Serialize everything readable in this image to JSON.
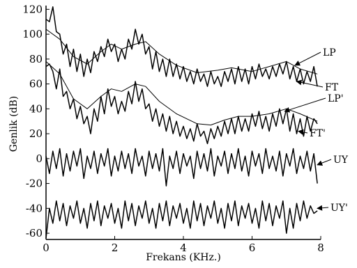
{
  "chart_data": {
    "type": "line",
    "title": "",
    "xlabel": "Frekans (KHz.)",
    "ylabel": "Genlik (dB)",
    "xlim": [
      0,
      8
    ],
    "ylim": [
      -65,
      123
    ],
    "x_ticks": [
      "0",
      "2",
      "4",
      "6",
      "8"
    ],
    "y_ticks": [
      "120",
      "100",
      "80",
      "60",
      "40",
      "20",
      "0",
      "-20",
      "-40",
      "-60"
    ],
    "grid": false,
    "legend": "none",
    "series": [
      {
        "name": "FT",
        "style": "jagged",
        "x": [
          0.0,
          0.1,
          0.2,
          0.3,
          0.4,
          0.5,
          0.6,
          0.7,
          0.8,
          0.9,
          1.0,
          1.1,
          1.2,
          1.3,
          1.4,
          1.5,
          1.6,
          1.7,
          1.8,
          1.9,
          2.0,
          2.1,
          2.2,
          2.3,
          2.4,
          2.5,
          2.6,
          2.7,
          2.8,
          2.9,
          3.0,
          3.1,
          3.2,
          3.3,
          3.4,
          3.5,
          3.6,
          3.7,
          3.8,
          3.9,
          4.0,
          4.1,
          4.2,
          4.3,
          4.4,
          4.5,
          4.6,
          4.7,
          4.8,
          4.9,
          5.0,
          5.1,
          5.2,
          5.3,
          5.4,
          5.5,
          5.6,
          5.7,
          5.8,
          5.9,
          6.0,
          6.1,
          6.2,
          6.3,
          6.4,
          6.5,
          6.6,
          6.7,
          6.8,
          6.9,
          7.0,
          7.1,
          7.2,
          7.3,
          7.4,
          7.5,
          7.6,
          7.7,
          7.8,
          7.9
        ],
        "y": [
          112,
          110,
          122,
          102,
          100,
          84,
          92,
          74,
          88,
          70,
          84,
          66,
          80,
          69,
          86,
          78,
          90,
          82,
          96,
          86,
          92,
          78,
          88,
          80,
          96,
          88,
          104,
          92,
          100,
          84,
          90,
          72,
          86,
          70,
          80,
          66,
          80,
          66,
          76,
          64,
          74,
          62,
          70,
          60,
          72,
          62,
          68,
          58,
          70,
          60,
          66,
          58,
          70,
          62,
          72,
          60,
          74,
          62,
          72,
          60,
          74,
          64,
          76,
          66,
          72,
          64,
          74,
          66,
          76,
          68,
          78,
          64,
          74,
          62,
          72,
          60,
          70,
          62,
          74,
          58
        ]
      },
      {
        "name": "LP",
        "style": "smooth",
        "x": [
          0.0,
          0.4,
          0.8,
          1.2,
          1.6,
          1.9,
          2.2,
          2.6,
          2.9,
          3.3,
          3.8,
          4.4,
          5.0,
          5.4,
          6.0,
          6.5,
          7.0,
          7.4,
          7.9
        ],
        "y": [
          104,
          96,
          82,
          76,
          86,
          92,
          88,
          92,
          94,
          84,
          75,
          69,
          71,
          73,
          70,
          74,
          78,
          72,
          68
        ]
      },
      {
        "name": "FT'",
        "style": "jagged",
        "x": [
          0.0,
          0.1,
          0.2,
          0.3,
          0.4,
          0.5,
          0.6,
          0.7,
          0.8,
          0.9,
          1.0,
          1.1,
          1.2,
          1.3,
          1.4,
          1.5,
          1.6,
          1.7,
          1.8,
          1.9,
          2.0,
          2.1,
          2.2,
          2.3,
          2.4,
          2.5,
          2.6,
          2.7,
          2.8,
          2.9,
          3.0,
          3.1,
          3.2,
          3.3,
          3.4,
          3.5,
          3.6,
          3.7,
          3.8,
          3.9,
          4.0,
          4.1,
          4.2,
          4.3,
          4.4,
          4.5,
          4.6,
          4.7,
          4.8,
          4.9,
          5.0,
          5.1,
          5.2,
          5.3,
          5.4,
          5.5,
          5.6,
          5.7,
          5.8,
          5.9,
          6.0,
          6.1,
          6.2,
          6.3,
          6.4,
          6.5,
          6.6,
          6.7,
          6.8,
          6.9,
          7.0,
          7.1,
          7.2,
          7.3,
          7.4,
          7.5,
          7.6,
          7.7,
          7.8,
          7.9
        ],
        "y": [
          74,
          76,
          70,
          56,
          72,
          50,
          54,
          40,
          48,
          32,
          42,
          28,
          34,
          20,
          40,
          30,
          50,
          36,
          56,
          42,
          50,
          36,
          46,
          38,
          54,
          44,
          62,
          46,
          56,
          40,
          44,
          30,
          40,
          26,
          36,
          22,
          34,
          20,
          30,
          18,
          26,
          16,
          24,
          14,
          28,
          18,
          22,
          12,
          24,
          16,
          26,
          18,
          30,
          20,
          32,
          20,
          34,
          22,
          32,
          22,
          36,
          26,
          38,
          24,
          34,
          22,
          36,
          26,
          40,
          28,
          40,
          22,
          36,
          20,
          32,
          18,
          34,
          22,
          32,
          28
        ]
      },
      {
        "name": "LP'",
        "style": "smooth",
        "x": [
          0.0,
          0.4,
          0.8,
          1.2,
          1.6,
          1.9,
          2.2,
          2.6,
          2.9,
          3.3,
          3.8,
          4.4,
          4.8,
          5.2,
          5.6,
          6.0,
          6.5,
          7.0,
          7.4,
          7.9
        ],
        "y": [
          78,
          68,
          48,
          40,
          50,
          56,
          54,
          60,
          58,
          46,
          36,
          28,
          27,
          31,
          34,
          34,
          36,
          40,
          36,
          30
        ]
      },
      {
        "name": "UY",
        "style": "jagged",
        "x": [
          0.0,
          0.1,
          0.2,
          0.3,
          0.4,
          0.5,
          0.6,
          0.7,
          0.8,
          0.9,
          1.0,
          1.1,
          1.2,
          1.3,
          1.4,
          1.5,
          1.6,
          1.7,
          1.8,
          1.9,
          2.0,
          2.1,
          2.2,
          2.3,
          2.4,
          2.5,
          2.6,
          2.7,
          2.8,
          2.9,
          3.0,
          3.1,
          3.2,
          3.3,
          3.4,
          3.5,
          3.6,
          3.7,
          3.8,
          3.9,
          4.0,
          4.1,
          4.2,
          4.3,
          4.4,
          4.5,
          4.6,
          4.7,
          4.8,
          4.9,
          5.0,
          5.1,
          5.2,
          5.3,
          5.4,
          5.5,
          5.6,
          5.7,
          5.8,
          5.9,
          6.0,
          6.1,
          6.2,
          6.3,
          6.4,
          6.5,
          6.6,
          6.7,
          6.8,
          6.9,
          7.0,
          7.1,
          7.2,
          7.3,
          7.4,
          7.5,
          7.6,
          7.7,
          7.8,
          7.9
        ],
        "y": [
          2,
          -12,
          6,
          -8,
          8,
          -14,
          4,
          -10,
          6,
          -6,
          8,
          -16,
          2,
          -8,
          6,
          -12,
          4,
          -6,
          8,
          -14,
          2,
          -10,
          6,
          -8,
          4,
          -12,
          8,
          -6,
          2,
          -14,
          6,
          -8,
          4,
          -10,
          8,
          -22,
          2,
          -8,
          6,
          -12,
          4,
          -6,
          2,
          -16,
          6,
          -8,
          4,
          -10,
          8,
          -14,
          2,
          -6,
          6,
          -12,
          4,
          -8,
          8,
          -10,
          2,
          -14,
          6,
          -6,
          4,
          -12,
          8,
          -8,
          2,
          -10,
          6,
          -14,
          4,
          -6,
          8,
          -12,
          2,
          -8,
          6,
          -10,
          4,
          -20
        ]
      },
      {
        "name": "UY'",
        "style": "jagged",
        "x": [
          0.0,
          0.1,
          0.2,
          0.3,
          0.4,
          0.5,
          0.6,
          0.7,
          0.8,
          0.9,
          1.0,
          1.1,
          1.2,
          1.3,
          1.4,
          1.5,
          1.6,
          1.7,
          1.8,
          1.9,
          2.0,
          2.1,
          2.2,
          2.3,
          2.4,
          2.5,
          2.6,
          2.7,
          2.8,
          2.9,
          3.0,
          3.1,
          3.2,
          3.3,
          3.4,
          3.5,
          3.6,
          3.7,
          3.8,
          3.9,
          4.0,
          4.1,
          4.2,
          4.3,
          4.4,
          4.5,
          4.6,
          4.7,
          4.8,
          4.9,
          5.0,
          5.1,
          5.2,
          5.3,
          5.4,
          5.5,
          5.6,
          5.7,
          5.8,
          5.9,
          6.0,
          6.1,
          6.2,
          6.3,
          6.4,
          6.5,
          6.6,
          6.7,
          6.8,
          6.9,
          7.0,
          7.1,
          7.2,
          7.3,
          7.4,
          7.5,
          7.6,
          7.7,
          7.8,
          7.9
        ],
        "y": [
          -64,
          -40,
          -52,
          -34,
          -50,
          -36,
          -54,
          -38,
          -48,
          -34,
          -52,
          -40,
          -56,
          -36,
          -50,
          -34,
          -54,
          -38,
          -48,
          -36,
          -52,
          -40,
          -56,
          -34,
          -50,
          -36,
          -54,
          -38,
          -48,
          -34,
          -52,
          -40,
          -56,
          -36,
          -50,
          -34,
          -54,
          -38,
          -48,
          -36,
          -52,
          -40,
          -56,
          -34,
          -50,
          -36,
          -54,
          -38,
          -48,
          -34,
          -52,
          -40,
          -56,
          -36,
          -50,
          -34,
          -54,
          -38,
          -48,
          -36,
          -52,
          -40,
          -56,
          -34,
          -50,
          -36,
          -54,
          -38,
          -48,
          -34,
          -60,
          -40,
          -56,
          -36,
          -50,
          -34,
          -48,
          -38,
          -44,
          -42
        ]
      }
    ],
    "annotations": [
      {
        "text": "LP",
        "arrow_to": [
          7.25,
          75
        ]
      },
      {
        "text": "FT",
        "arrow_to": [
          7.3,
          62
        ]
      },
      {
        "text": "LP'",
        "arrow_to": [
          6.95,
          38
        ]
      },
      {
        "text": "FT'",
        "arrow_to": [
          7.35,
          22
        ]
      },
      {
        "text": "UY",
        "arrow_to": [
          7.9,
          -5
        ]
      },
      {
        "text": "UY'",
        "arrow_to": [
          7.9,
          -40
        ]
      }
    ]
  }
}
